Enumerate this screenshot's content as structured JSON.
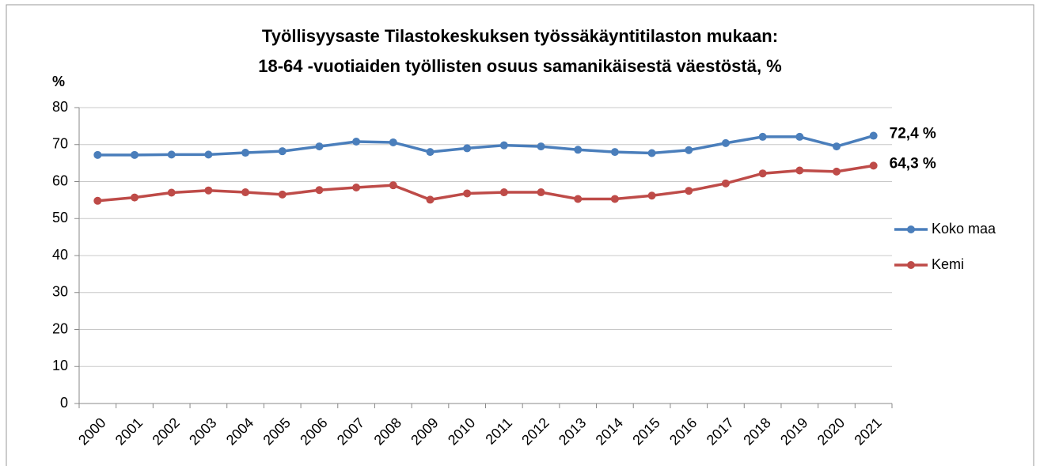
{
  "chart_data": {
    "type": "line",
    "title": [
      "Työllisyysaste Tilastokeskuksen työssäkäyntitilaston mukaan:",
      "18-64 -vuotiaiden työllisten osuus samanikäisestä väestöstä, %"
    ],
    "y_label": "%",
    "categories": [
      "2000",
      "2001",
      "2002",
      "2003",
      "2004",
      "2005",
      "2006",
      "2007",
      "2008",
      "2009",
      "2010",
      "2011",
      "2012",
      "2013",
      "2014",
      "2015",
      "2016",
      "2017",
      "2018",
      "2019",
      "2020",
      "2021"
    ],
    "series": [
      {
        "name": "Koko maa",
        "color": "#4a7ebb",
        "values": [
          67.2,
          67.2,
          67.3,
          67.3,
          67.8,
          68.2,
          69.5,
          70.8,
          70.6,
          68.0,
          69.0,
          69.8,
          69.5,
          68.6,
          68.0,
          67.7,
          68.5,
          70.4,
          72.1,
          72.1,
          69.5,
          72.4
        ],
        "value_labels": [
          null,
          null,
          null,
          null,
          null,
          null,
          null,
          null,
          null,
          null,
          null,
          null,
          null,
          null,
          null,
          null,
          null,
          null,
          null,
          null,
          null,
          "72,4 %"
        ]
      },
      {
        "name": "Kemi",
        "color": "#be4b48",
        "values": [
          54.8,
          55.7,
          57.0,
          57.6,
          57.1,
          56.5,
          57.7,
          58.4,
          59.0,
          55.1,
          56.8,
          57.1,
          57.1,
          55.3,
          55.3,
          56.2,
          57.5,
          59.5,
          62.2,
          63.0,
          62.7,
          64.3
        ],
        "value_labels": [
          null,
          null,
          null,
          null,
          null,
          null,
          null,
          null,
          null,
          null,
          null,
          null,
          null,
          null,
          null,
          null,
          null,
          null,
          null,
          null,
          null,
          "64,3 %"
        ]
      }
    ],
    "ylim": [
      0,
      80
    ],
    "yticks": [
      0,
      10,
      20,
      30,
      40,
      50,
      60,
      70,
      80
    ],
    "grid": true,
    "legend": "right"
  }
}
